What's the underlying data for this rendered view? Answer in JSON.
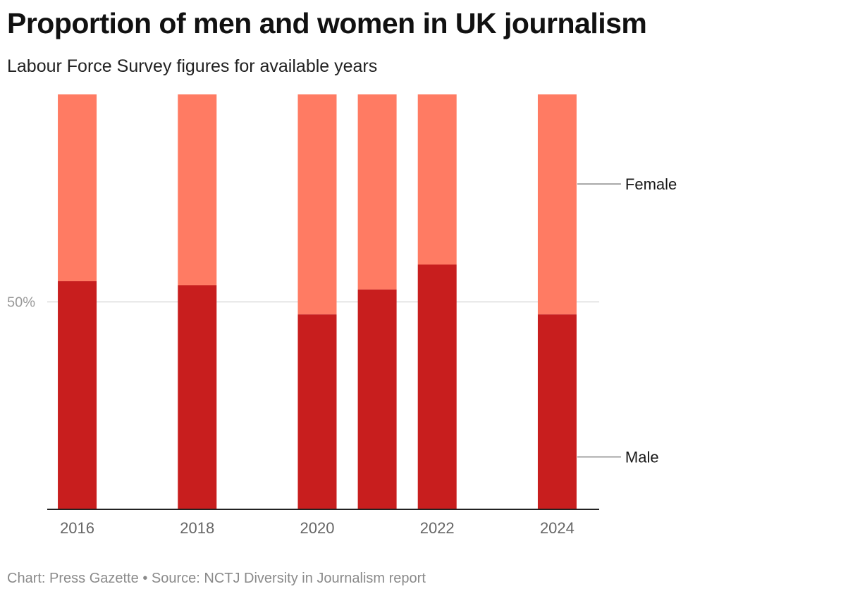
{
  "title": "Proportion of men and women in UK journalism",
  "subtitle": "Labour Force Survey figures for available years",
  "footer": {
    "chart_credit": "Chart: Press Gazette",
    "separator": "•",
    "source": "Source: NCTJ Diversity in Journalism report"
  },
  "colors": {
    "male": "#c81e1e",
    "female": "#ff7b63",
    "gridline": "#dddddd",
    "axis": "#222222",
    "tick_text": "#666666",
    "y_tick_text": "#999999"
  },
  "chart_data": {
    "type": "bar",
    "stacked": true,
    "x": [
      2016,
      2018,
      2020,
      2021,
      2022,
      2024
    ],
    "x_tick_labels": [
      "2016",
      "2018",
      "2020",
      "2022",
      "2024"
    ],
    "x_range": [
      2015.5,
      2024.7
    ],
    "ylim": [
      0,
      100
    ],
    "y_ticks": [
      {
        "value": 50,
        "label": "50%"
      }
    ],
    "series": [
      {
        "name": "Male",
        "values": [
          55,
          54,
          47,
          53,
          59,
          47
        ]
      },
      {
        "name": "Female",
        "values": [
          45,
          46,
          53,
          47,
          41,
          53
        ]
      }
    ],
    "legend": "direct labels right of last bar"
  }
}
